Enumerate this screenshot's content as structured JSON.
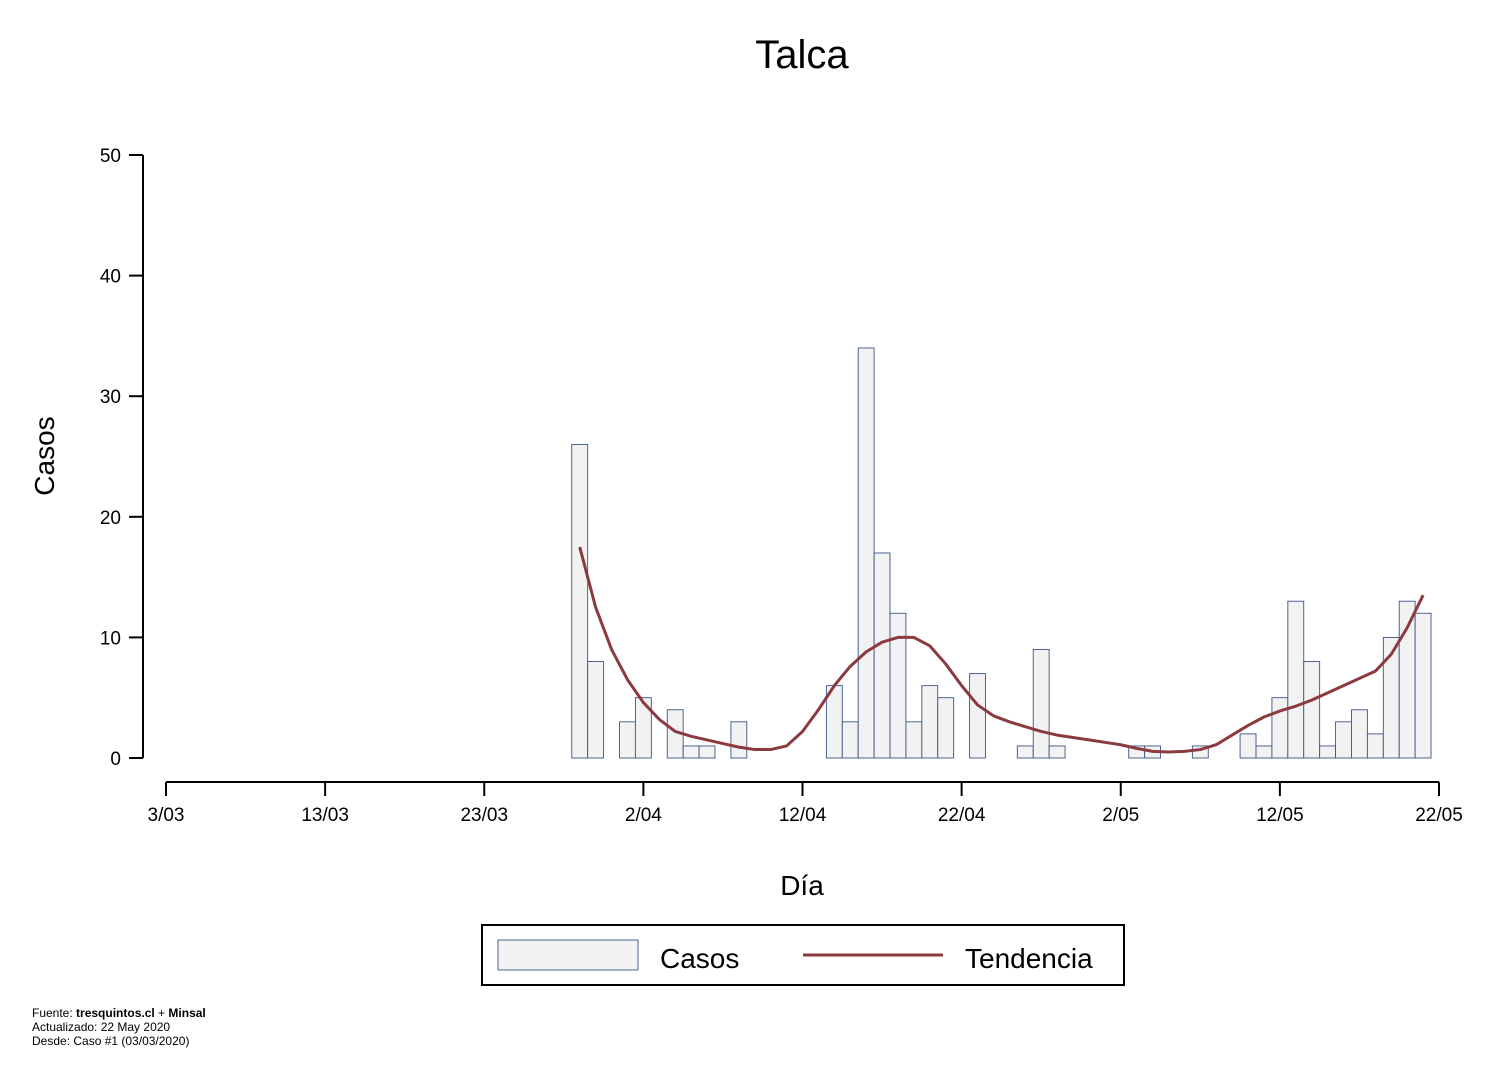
{
  "colors": {
    "bar_fill": "#f2f2f2",
    "bar_stroke": "#3b5586",
    "trend": "#8b3a3f",
    "axis": "#000000"
  },
  "chart_data": {
    "type": "bar",
    "title": "Talca",
    "xlabel": "Día",
    "ylabel": "Casos",
    "ylim": [
      0,
      50
    ],
    "yticks": [
      0,
      10,
      20,
      30,
      40,
      50
    ],
    "x_range": [
      "2020-03-03",
      "2020-05-22"
    ],
    "x_tick_labels": [
      "3/03",
      "13/03",
      "23/03",
      "2/04",
      "12/04",
      "22/04",
      "2/05",
      "12/05",
      "22/05"
    ],
    "x_tick_dates": [
      "2020-03-03",
      "2020-03-13",
      "2020-03-23",
      "2020-04-02",
      "2020-04-12",
      "2020-04-22",
      "2020-05-02",
      "2020-05-12",
      "2020-05-22"
    ],
    "grid": false,
    "legend_position": "bottom",
    "series": [
      {
        "name": "Casos",
        "kind": "bar",
        "x": [
          "2020-03-29",
          "2020-03-30",
          "2020-03-31",
          "2020-04-01",
          "2020-04-02",
          "2020-04-03",
          "2020-04-04",
          "2020-04-05",
          "2020-04-06",
          "2020-04-07",
          "2020-04-08",
          "2020-04-09",
          "2020-04-10",
          "2020-04-11",
          "2020-04-12",
          "2020-04-13",
          "2020-04-14",
          "2020-04-15",
          "2020-04-16",
          "2020-04-17",
          "2020-04-18",
          "2020-04-19",
          "2020-04-20",
          "2020-04-21",
          "2020-04-22",
          "2020-04-23",
          "2020-04-24",
          "2020-04-25",
          "2020-04-26",
          "2020-04-27",
          "2020-04-28",
          "2020-04-29",
          "2020-04-30",
          "2020-05-01",
          "2020-05-02",
          "2020-05-03",
          "2020-05-04",
          "2020-05-05",
          "2020-05-06",
          "2020-05-07",
          "2020-05-08",
          "2020-05-09",
          "2020-05-10",
          "2020-05-11",
          "2020-05-12",
          "2020-05-13",
          "2020-05-14",
          "2020-05-15",
          "2020-05-16",
          "2020-05-17",
          "2020-05-18",
          "2020-05-19",
          "2020-05-20",
          "2020-05-21"
        ],
        "values": [
          26,
          8,
          0,
          3,
          5,
          0,
          4,
          1,
          1,
          0,
          3,
          0,
          0,
          0,
          0,
          0,
          6,
          3,
          34,
          17,
          12,
          3,
          6,
          5,
          0,
          7,
          0,
          0,
          1,
          9,
          1,
          0,
          0,
          0,
          0,
          1,
          1,
          0,
          0,
          1,
          0,
          0,
          2,
          1,
          5,
          13,
          8,
          1,
          3,
          4,
          2,
          10,
          13,
          12
        ]
      },
      {
        "name": "Tendencia",
        "kind": "line",
        "x": [
          "2020-03-29",
          "2020-03-30",
          "2020-03-31",
          "2020-04-01",
          "2020-04-02",
          "2020-04-03",
          "2020-04-04",
          "2020-04-05",
          "2020-04-06",
          "2020-04-07",
          "2020-04-08",
          "2020-04-09",
          "2020-04-10",
          "2020-04-11",
          "2020-04-12",
          "2020-04-13",
          "2020-04-14",
          "2020-04-15",
          "2020-04-16",
          "2020-04-17",
          "2020-04-18",
          "2020-04-19",
          "2020-04-20",
          "2020-04-21",
          "2020-04-22",
          "2020-04-23",
          "2020-04-24",
          "2020-04-25",
          "2020-04-26",
          "2020-04-27",
          "2020-04-28",
          "2020-04-29",
          "2020-04-30",
          "2020-05-01",
          "2020-05-02",
          "2020-05-03",
          "2020-05-04",
          "2020-05-05",
          "2020-05-06",
          "2020-05-07",
          "2020-05-08",
          "2020-05-09",
          "2020-05-10",
          "2020-05-11",
          "2020-05-12",
          "2020-05-13",
          "2020-05-14",
          "2020-05-15",
          "2020-05-16",
          "2020-05-17",
          "2020-05-18",
          "2020-05-19",
          "2020-05-20",
          "2020-05-21"
        ],
        "values": [
          17.5,
          12.5,
          9.0,
          6.5,
          4.6,
          3.2,
          2.2,
          1.8,
          1.5,
          1.2,
          0.9,
          0.7,
          0.7,
          1.0,
          2.2,
          4.0,
          6.0,
          7.6,
          8.8,
          9.6,
          10.0,
          10.0,
          9.3,
          7.8,
          6.0,
          4.4,
          3.5,
          3.0,
          2.6,
          2.2,
          1.9,
          1.7,
          1.5,
          1.3,
          1.1,
          0.8,
          0.55,
          0.5,
          0.55,
          0.7,
          1.1,
          1.9,
          2.7,
          3.4,
          3.9,
          4.3,
          4.8,
          5.4,
          6.0,
          6.6,
          7.2,
          8.6,
          10.8,
          13.5
        ]
      }
    ]
  },
  "footer": {
    "source_prefix": "Fuente: ",
    "source_site": "tresquintos.cl",
    "source_join": " + ",
    "source_org": "Minsal",
    "updated": "Actualizado: 22 May 2020",
    "since": "Desde: Caso #1  (03/03/2020)"
  }
}
